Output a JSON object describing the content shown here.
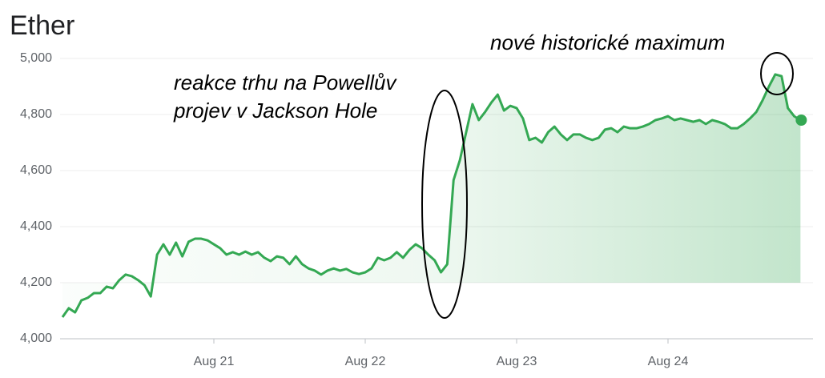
{
  "chart_data": {
    "type": "line",
    "title": "Ether",
    "categories": [
      null,
      null,
      null,
      null,
      null,
      null,
      null,
      null,
      null,
      null,
      null,
      null,
      null,
      null,
      null,
      null,
      null,
      null,
      null,
      null,
      null,
      null,
      null,
      null,
      "Aug 21",
      null,
      null,
      null,
      null,
      null,
      null,
      null,
      null,
      null,
      null,
      null,
      null,
      null,
      null,
      null,
      null,
      null,
      null,
      null,
      null,
      null,
      null,
      null,
      "Aug 22",
      null,
      null,
      null,
      null,
      null,
      null,
      null,
      null,
      null,
      null,
      null,
      null,
      null,
      null,
      null,
      null,
      null,
      null,
      null,
      null,
      null,
      null,
      null,
      "Aug 23",
      null,
      null,
      null,
      null,
      null,
      null,
      null,
      null,
      null,
      null,
      null,
      null,
      null,
      null,
      null,
      null,
      null,
      null,
      null,
      null,
      null,
      null,
      null,
      "Aug 24",
      null,
      null,
      null,
      null,
      null,
      null,
      null,
      null,
      null,
      null,
      null,
      null,
      null,
      null,
      null,
      null,
      null,
      null,
      null,
      null,
      null
    ],
    "series": [
      {
        "name": "Ether",
        "color": "#34a853",
        "values": [
          4077,
          4109,
          4094,
          4137,
          4146,
          4163,
          4163,
          4186,
          4180,
          4209,
          4229,
          4223,
          4209,
          4191,
          4151,
          4300,
          4337,
          4300,
          4343,
          4294,
          4346,
          4357,
          4357,
          4351,
          4337,
          4323,
          4300,
          4309,
          4300,
          4311,
          4300,
          4309,
          4289,
          4277,
          4294,
          4289,
          4266,
          4294,
          4266,
          4251,
          4243,
          4229,
          4243,
          4251,
          4243,
          4249,
          4237,
          4231,
          4237,
          4251,
          4289,
          4280,
          4289,
          4309,
          4289,
          4317,
          4337,
          4323,
          4300,
          4280,
          4237,
          4266,
          4566,
          4637,
          4737,
          4837,
          4780,
          4809,
          4843,
          4871,
          4814,
          4831,
          4823,
          4786,
          4709,
          4717,
          4700,
          4737,
          4757,
          4729,
          4709,
          4729,
          4729,
          4717,
          4709,
          4717,
          4746,
          4751,
          4737,
          4757,
          4751,
          4751,
          4757,
          4766,
          4780,
          4786,
          4794,
          4780,
          4786,
          4780,
          4774,
          4780,
          4766,
          4780,
          4774,
          4766,
          4751,
          4751,
          4766,
          4786,
          4809,
          4851,
          4900,
          4943,
          4937,
          4823,
          4794,
          4780
        ]
      }
    ],
    "ylim": [
      4000,
      5000
    ],
    "yticks": [
      {
        "value": 4000,
        "label": "4,000"
      },
      {
        "value": 4200,
        "label": "4,200"
      },
      {
        "value": 4400,
        "label": "4,400"
      },
      {
        "value": 4600,
        "label": "4,600"
      },
      {
        "value": 4800,
        "label": "4,800"
      },
      {
        "value": 5000,
        "label": "5,000"
      }
    ],
    "grid": true,
    "annotations": [
      "reakce trhu na Powellův",
      "projev v Jackson Hole",
      "nové historické maximum"
    ]
  }
}
